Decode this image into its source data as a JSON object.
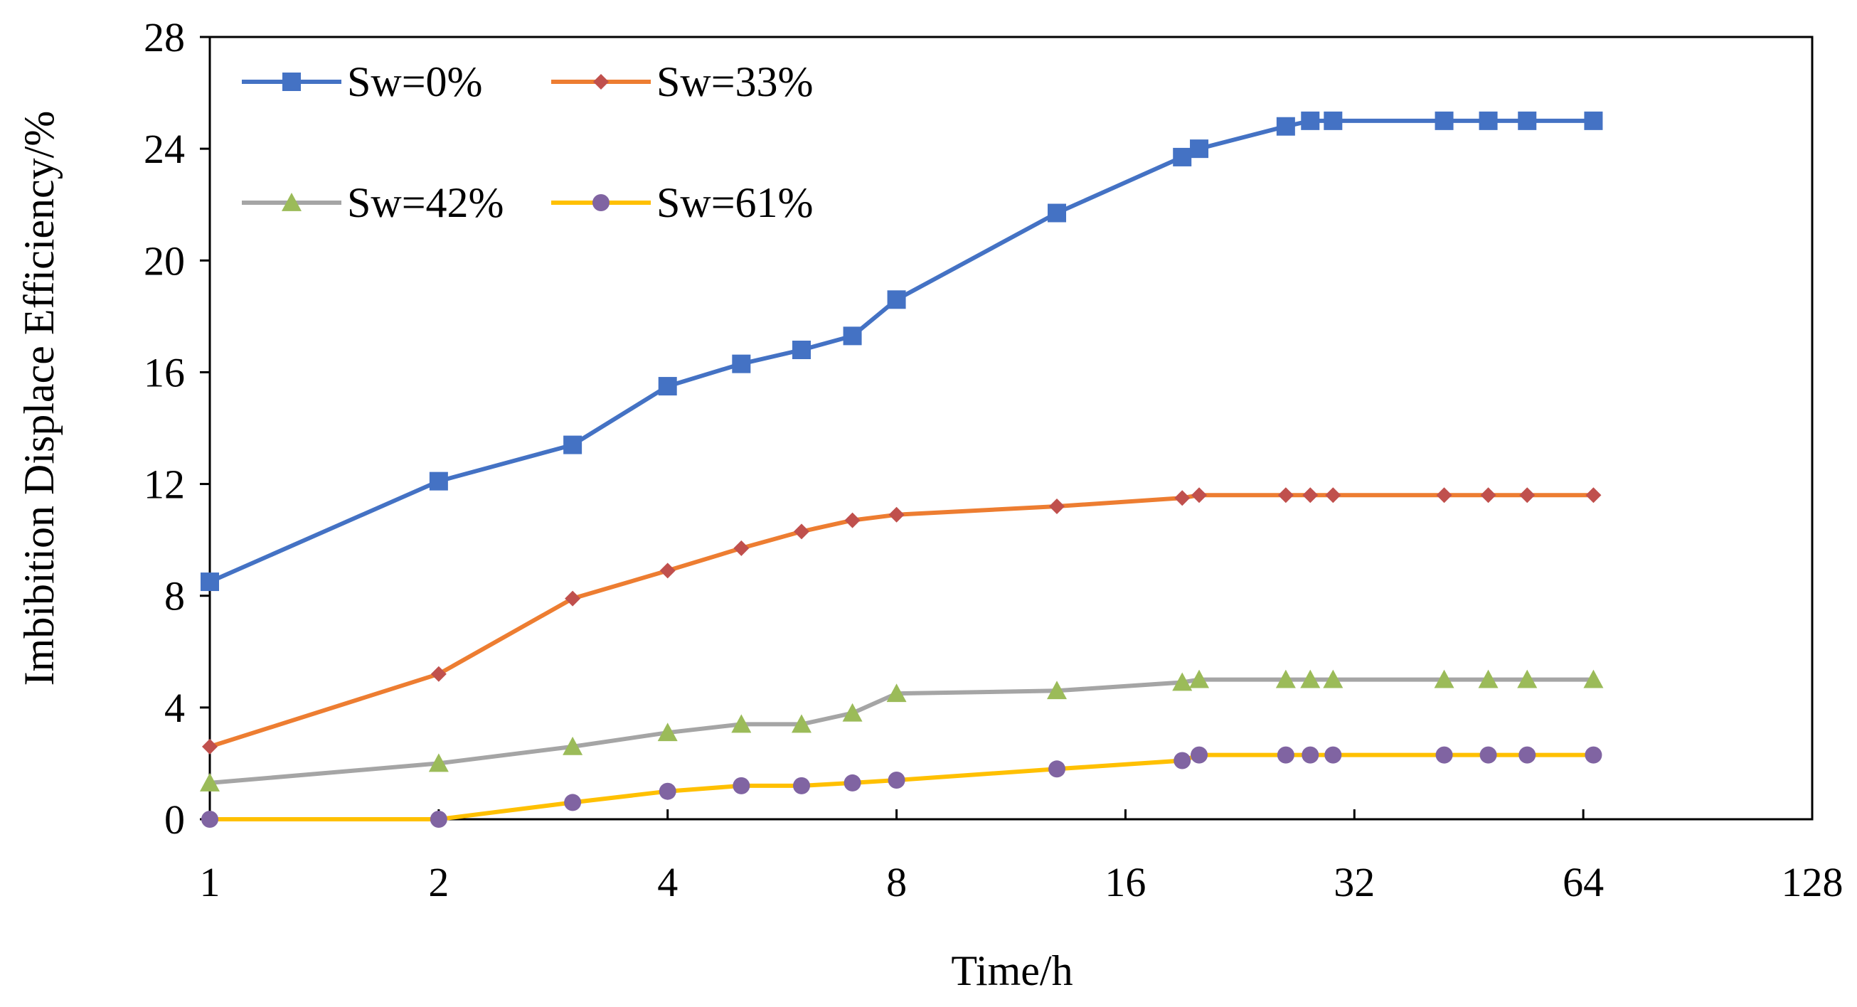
{
  "chart_data": {
    "type": "line",
    "title": "",
    "xlabel": "Time/h",
    "ylabel": "Imbibition Displace Efficiency/%",
    "xscale": "log2",
    "xlim": [
      1,
      128
    ],
    "ylim": [
      0,
      28
    ],
    "xticks": [
      1,
      2,
      4,
      8,
      16,
      32,
      64,
      128
    ],
    "xtick_labels": [
      "1",
      "2",
      "4",
      "8",
      "16",
      "32",
      "64",
      "128"
    ],
    "yticks": [
      0,
      4,
      8,
      12,
      16,
      20,
      24,
      28
    ],
    "ytick_labels": [
      "0",
      "4",
      "8",
      "12",
      "16",
      "20",
      "24",
      "28"
    ],
    "grid": false,
    "legend_position": "top-left",
    "x": [
      1,
      2,
      3,
      4,
      5,
      6,
      7,
      8,
      13,
      19,
      20,
      26,
      28,
      30,
      42,
      48,
      54,
      66
    ],
    "series": [
      {
        "name": "Sw=0%",
        "color": "#4472C4",
        "marker": "square",
        "values": [
          8.5,
          12.1,
          13.4,
          15.5,
          16.3,
          16.8,
          17.3,
          18.6,
          21.7,
          23.7,
          24.0,
          24.8,
          25.0,
          25.0,
          25.0,
          25.0,
          25.0,
          25.0
        ]
      },
      {
        "name": "Sw=33%",
        "color": "#ED7D31",
        "marker_color": "#C0504D",
        "marker": "diamond",
        "values": [
          2.6,
          5.2,
          7.9,
          8.9,
          9.7,
          10.3,
          10.7,
          10.9,
          11.2,
          11.5,
          11.6,
          11.6,
          11.6,
          11.6,
          11.6,
          11.6,
          11.6,
          11.6
        ]
      },
      {
        "name": "Sw=42%",
        "color": "#A5A5A5",
        "marker_color": "#9BBB59",
        "marker": "triangle",
        "values": [
          1.3,
          2.0,
          2.6,
          3.1,
          3.4,
          3.4,
          3.8,
          4.5,
          4.6,
          4.9,
          5.0,
          5.0,
          5.0,
          5.0,
          5.0,
          5.0,
          5.0,
          5.0
        ]
      },
      {
        "name": "Sw=61%",
        "color": "#FFC000",
        "marker_color": "#8064A2",
        "marker": "circle",
        "values": [
          0.0,
          0.0,
          0.6,
          1.0,
          1.2,
          1.2,
          1.3,
          1.4,
          1.8,
          2.1,
          2.3,
          2.3,
          2.3,
          2.3,
          2.3,
          2.3,
          2.3,
          2.3
        ]
      }
    ]
  }
}
